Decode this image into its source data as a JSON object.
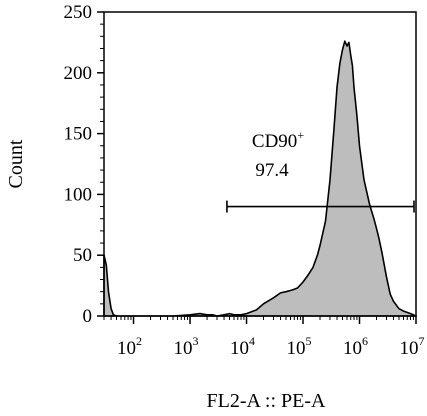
{
  "chart_data": {
    "type": "area",
    "title": "",
    "xlabel": "FL2-A :: PE-A",
    "ylabel": "Count",
    "xscale": "log",
    "xlim": [
      30,
      10000000
    ],
    "ylim": [
      0,
      250
    ],
    "grid": false,
    "legend": "none",
    "fill_color": "#bdbdbd",
    "line_color": "#000000",
    "yticks": [
      "0",
      "50",
      "100",
      "150",
      "200",
      "250"
    ],
    "xticks": [
      {
        "base": "10",
        "exp": "2",
        "value": 100
      },
      {
        "base": "10",
        "exp": "3",
        "value": 1000
      },
      {
        "base": "10",
        "exp": "4",
        "value": 10000
      },
      {
        "base": "10",
        "exp": "5",
        "value": 100000
      },
      {
        "base": "10",
        "exp": "6",
        "value": 1000000
      },
      {
        "base": "10",
        "exp": "7",
        "value": 10000000
      }
    ],
    "gate": {
      "label": "CD90",
      "label_sup": "+",
      "value": "97.4",
      "x_start": 4500,
      "x_end": 10000000,
      "y": 90
    },
    "series": [
      {
        "x": [
          30,
          33,
          36,
          40,
          44,
          50,
          60,
          80,
          100,
          200,
          500,
          1000,
          1500,
          2000,
          2500,
          3000,
          4000,
          5000,
          6000,
          8000,
          10000,
          15000,
          20000,
          30000,
          40000,
          50000,
          60000,
          70000,
          80000,
          100000,
          120000,
          150000,
          180000,
          200000,
          250000,
          300000,
          350000,
          400000,
          450000,
          500000,
          550000,
          600000,
          650000,
          700000,
          750000,
          800000,
          900000,
          1000000,
          1200000,
          1500000,
          1800000,
          2000000,
          2200000,
          2500000,
          3000000,
          3500000,
          4000000,
          5000000,
          6000000,
          7000000,
          8000000,
          9000000,
          10000000
        ],
        "y": [
          50,
          42,
          20,
          6,
          1,
          0,
          0,
          0,
          0,
          0,
          0,
          1,
          2,
          1,
          1,
          0,
          1,
          2,
          1,
          1,
          2,
          5,
          10,
          15,
          19,
          20,
          21,
          22,
          23,
          28,
          33,
          40,
          50,
          58,
          78,
          112,
          152,
          188,
          208,
          219,
          226,
          222,
          225,
          214,
          206,
          188,
          165,
          140,
          112,
          92,
          80,
          72,
          64,
          52,
          32,
          18,
          12,
          6,
          4,
          3,
          2,
          1,
          0
        ]
      }
    ]
  }
}
